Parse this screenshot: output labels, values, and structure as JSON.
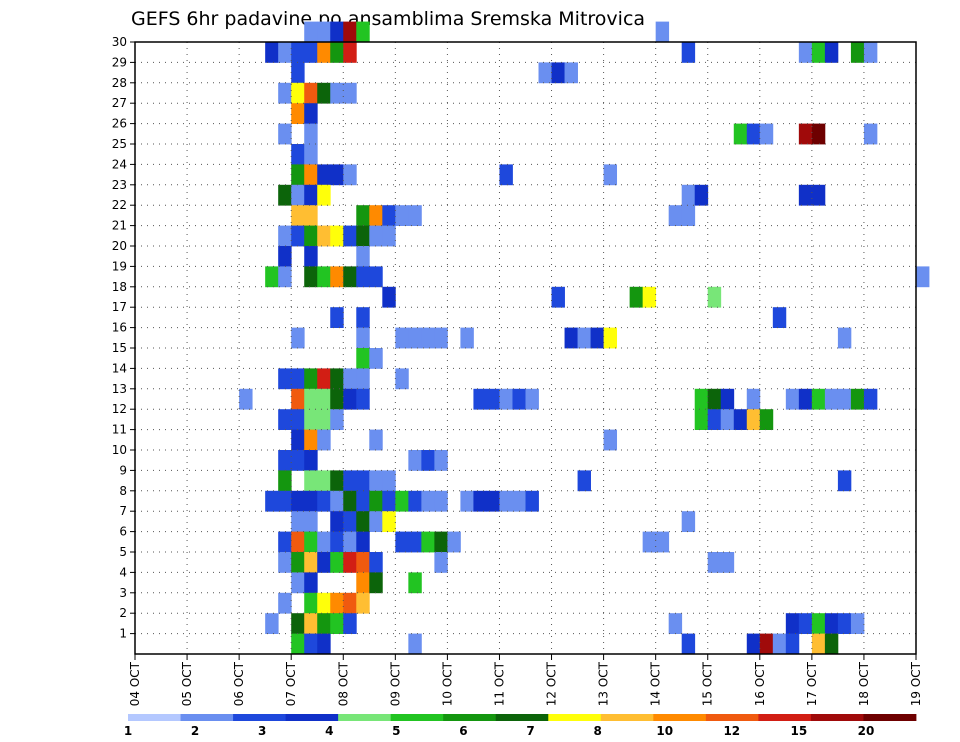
{
  "chart_data": {
    "type": "heatmap",
    "title": "GEFS 6hr padavine po ansamblima Sremska Mitrovica",
    "x_axis": {
      "start": "04 OCT",
      "end": "19 OCT",
      "step_hours": 6,
      "tick_labels": [
        "04 OCT",
        "05 OCT",
        "06 OCT",
        "07 OCT",
        "08 OCT",
        "09 OCT",
        "10 OCT",
        "11 OCT",
        "12 OCT",
        "13 OCT",
        "14 OCT",
        "15 OCT",
        "16 OCT",
        "17 OCT",
        "18 OCT",
        "19 OCT"
      ]
    },
    "y_axis": {
      "label": "",
      "ylim": [
        0,
        30
      ],
      "tick_labels": [
        "1",
        "2",
        "3",
        "4",
        "5",
        "6",
        "7",
        "8",
        "9",
        "10",
        "11",
        "12",
        "13",
        "14",
        "15",
        "16",
        "17",
        "18",
        "19",
        "20",
        "21",
        "22",
        "23",
        "24",
        "25",
        "26",
        "27",
        "28",
        "29",
        "30"
      ]
    },
    "grid": true,
    "legend": {
      "placement": "bottom",
      "colors": [
        "#b4c8ff",
        "#6a8ff0",
        "#1e48dc",
        "#1030c8",
        "#78e678",
        "#22c422",
        "#14960f",
        "#0c640a",
        "#ffff0a",
        "#ffbe32",
        "#ff8a00",
        "#f05a0f",
        "#d21e14",
        "#a00a0a",
        "#6e0000"
      ],
      "labels": [
        "1",
        "",
        "2",
        "",
        "3",
        "",
        "4",
        "",
        "5",
        "",
        "6",
        "",
        "7",
        "",
        "8",
        "",
        "10",
        "",
        "12",
        "",
        "15",
        "",
        "20",
        ""
      ],
      "tick_labels": [
        "1",
        "2",
        "3",
        "4",
        "5",
        "6",
        "7",
        "8",
        "10",
        "12",
        "15",
        "20"
      ]
    },
    "cells": [
      [
        "07 OCT 06Z",
        30,
        1
      ],
      [
        "07 OCT 12Z",
        30,
        1
      ],
      [
        "07 OCT 18Z",
        30,
        3
      ],
      [
        "08 OCT 00Z",
        30,
        13
      ],
      [
        "08 OCT 06Z",
        30,
        5
      ],
      [
        "14 OCT 00Z",
        30,
        1
      ],
      [
        "06 OCT 12Z",
        29,
        3
      ],
      [
        "06 OCT 18Z",
        29,
        1
      ],
      [
        "07 OCT 00Z",
        29,
        2
      ],
      [
        "07 OCT 06Z",
        29,
        2
      ],
      [
        "07 OCT 12Z",
        29,
        10
      ],
      [
        "07 OCT 18Z",
        29,
        6
      ],
      [
        "08 OCT 00Z",
        29,
        12
      ],
      [
        "14 OCT 12Z",
        29,
        2
      ],
      [
        "16 OCT 18Z",
        29,
        1
      ],
      [
        "17 OCT 00Z",
        29,
        5
      ],
      [
        "17 OCT 06Z",
        29,
        3
      ],
      [
        "17 OCT 18Z",
        29,
        6
      ],
      [
        "18 OCT 00Z",
        29,
        1
      ],
      [
        "07 OCT 00Z",
        28,
        2
      ],
      [
        "11 OCT 18Z",
        28,
        1
      ],
      [
        "12 OCT 00Z",
        28,
        3
      ],
      [
        "12 OCT 06Z",
        28,
        1
      ],
      [
        "06 OCT 18Z",
        27,
        1
      ],
      [
        "07 OCT 00Z",
        27,
        8
      ],
      [
        "07 OCT 06Z",
        27,
        11
      ],
      [
        "07 OCT 12Z",
        27,
        7
      ],
      [
        "07 OCT 18Z",
        27,
        1
      ],
      [
        "08 OCT 00Z",
        27,
        1
      ],
      [
        "07 OCT 00Z",
        26,
        10
      ],
      [
        "07 OCT 06Z",
        26,
        3
      ],
      [
        "06 OCT 18Z",
        25,
        1
      ],
      [
        "07 OCT 06Z",
        25,
        1
      ],
      [
        "15 OCT 12Z",
        25,
        5
      ],
      [
        "15 OCT 18Z",
        25,
        2
      ],
      [
        "16 OCT 00Z",
        25,
        1
      ],
      [
        "16 OCT 18Z",
        25,
        13
      ],
      [
        "17 OCT 00Z",
        25,
        14
      ],
      [
        "18 OCT 00Z",
        25,
        1
      ],
      [
        "07 OCT 00Z",
        24,
        2
      ],
      [
        "07 OCT 06Z",
        24,
        1
      ],
      [
        "07 OCT 00Z",
        23,
        6
      ],
      [
        "07 OCT 06Z",
        23,
        10
      ],
      [
        "07 OCT 12Z",
        23,
        3
      ],
      [
        "07 OCT 18Z",
        23,
        3
      ],
      [
        "08 OCT 00Z",
        23,
        1
      ],
      [
        "11 OCT 00Z",
        23,
        2
      ],
      [
        "13 OCT 00Z",
        23,
        1
      ],
      [
        "06 OCT 18Z",
        22,
        7
      ],
      [
        "07 OCT 00Z",
        22,
        1
      ],
      [
        "07 OCT 06Z",
        22,
        3
      ],
      [
        "07 OCT 12Z",
        22,
        8
      ],
      [
        "14 OCT 12Z",
        22,
        1
      ],
      [
        "14 OCT 18Z",
        22,
        3
      ],
      [
        "16 OCT 18Z",
        22,
        3
      ],
      [
        "17 OCT 00Z",
        22,
        3
      ],
      [
        "07 OCT 00Z",
        21,
        9
      ],
      [
        "07 OCT 06Z",
        21,
        9
      ],
      [
        "08 OCT 06Z",
        21,
        6
      ],
      [
        "08 OCT 12Z",
        21,
        10
      ],
      [
        "08 OCT 18Z",
        21,
        2
      ],
      [
        "09 OCT 00Z",
        21,
        1
      ],
      [
        "09 OCT 06Z",
        21,
        1
      ],
      [
        "14 OCT 06Z",
        21,
        1
      ],
      [
        "14 OCT 12Z",
        21,
        1
      ],
      [
        "06 OCT 18Z",
        20,
        1
      ],
      [
        "07 OCT 00Z",
        20,
        2
      ],
      [
        "07 OCT 06Z",
        20,
        6
      ],
      [
        "07 OCT 12Z",
        20,
        9
      ],
      [
        "07 OCT 18Z",
        20,
        8
      ],
      [
        "08 OCT 00Z",
        20,
        2
      ],
      [
        "08 OCT 06Z",
        20,
        7
      ],
      [
        "08 OCT 12Z",
        20,
        1
      ],
      [
        "08 OCT 18Z",
        20,
        1
      ],
      [
        "06 OCT 18Z",
        19,
        3
      ],
      [
        "07 OCT 06Z",
        19,
        3
      ],
      [
        "08 OCT 06Z",
        19,
        1
      ],
      [
        "06 OCT 12Z",
        18,
        5
      ],
      [
        "06 OCT 18Z",
        18,
        1
      ],
      [
        "07 OCT 06Z",
        18,
        7
      ],
      [
        "07 OCT 12Z",
        18,
        5
      ],
      [
        "07 OCT 18Z",
        18,
        10
      ],
      [
        "08 OCT 00Z",
        18,
        7
      ],
      [
        "08 OCT 06Z",
        18,
        2
      ],
      [
        "08 OCT 12Z",
        18,
        2
      ],
      [
        "19 OCT 00Z",
        18,
        1
      ],
      [
        "08 OCT 18Z",
        17,
        3
      ],
      [
        "12 OCT 00Z",
        17,
        2
      ],
      [
        "13 OCT 12Z",
        17,
        6
      ],
      [
        "13 OCT 18Z",
        17,
        8
      ],
      [
        "15 OCT 00Z",
        17,
        4
      ],
      [
        "07 OCT 18Z",
        16,
        2
      ],
      [
        "08 OCT 06Z",
        16,
        2
      ],
      [
        "16 OCT 06Z",
        16,
        2
      ],
      [
        "07 OCT 00Z",
        15,
        1
      ],
      [
        "08 OCT 06Z",
        15,
        1
      ],
      [
        "09 OCT 00Z",
        15,
        1
      ],
      [
        "09 OCT 06Z",
        15,
        1
      ],
      [
        "09 OCT 12Z",
        15,
        1
      ],
      [
        "09 OCT 18Z",
        15,
        1
      ],
      [
        "10 OCT 06Z",
        15,
        1
      ],
      [
        "12 OCT 06Z",
        15,
        3
      ],
      [
        "12 OCT 12Z",
        15,
        1
      ],
      [
        "12 OCT 18Z",
        15,
        3
      ],
      [
        "13 OCT 00Z",
        15,
        8
      ],
      [
        "17 OCT 12Z",
        15,
        1
      ],
      [
        "08 OCT 06Z",
        14,
        5
      ],
      [
        "08 OCT 12Z",
        14,
        1
      ],
      [
        "06 OCT 18Z",
        13,
        2
      ],
      [
        "07 OCT 00Z",
        13,
        2
      ],
      [
        "07 OCT 06Z",
        13,
        6
      ],
      [
        "07 OCT 12Z",
        13,
        12
      ],
      [
        "07 OCT 18Z",
        13,
        7
      ],
      [
        "08 OCT 00Z",
        13,
        1
      ],
      [
        "08 OCT 06Z",
        13,
        1
      ],
      [
        "09 OCT 00Z",
        13,
        1
      ],
      [
        "06 OCT 00Z",
        12,
        1
      ],
      [
        "07 OCT 00Z",
        12,
        11
      ],
      [
        "07 OCT 06Z",
        12,
        4
      ],
      [
        "07 OCT 12Z",
        12,
        4
      ],
      [
        "07 OCT 18Z",
        12,
        7
      ],
      [
        "08 OCT 00Z",
        12,
        3
      ],
      [
        "08 OCT 06Z",
        12,
        2
      ],
      [
        "10 OCT 12Z",
        12,
        2
      ],
      [
        "10 OCT 18Z",
        12,
        2
      ],
      [
        "11 OCT 00Z",
        12,
        1
      ],
      [
        "11 OCT 06Z",
        12,
        2
      ],
      [
        "11 OCT 12Z",
        12,
        1
      ],
      [
        "14 OCT 18Z",
        12,
        5
      ],
      [
        "15 OCT 00Z",
        12,
        7
      ],
      [
        "15 OCT 06Z",
        12,
        3
      ],
      [
        "15 OCT 18Z",
        12,
        1
      ],
      [
        "16 OCT 12Z",
        12,
        1
      ],
      [
        "16 OCT 18Z",
        12,
        3
      ],
      [
        "17 OCT 00Z",
        12,
        5
      ],
      [
        "17 OCT 06Z",
        12,
        1
      ],
      [
        "17 OCT 12Z",
        12,
        1
      ],
      [
        "17 OCT 18Z",
        12,
        6
      ],
      [
        "18 OCT 00Z",
        12,
        2
      ],
      [
        "06 OCT 18Z",
        11,
        2
      ],
      [
        "07 OCT 00Z",
        11,
        2
      ],
      [
        "07 OCT 06Z",
        11,
        4
      ],
      [
        "07 OCT 12Z",
        11,
        4
      ],
      [
        "07 OCT 18Z",
        11,
        1
      ],
      [
        "14 OCT 18Z",
        11,
        5
      ],
      [
        "15 OCT 00Z",
        11,
        2
      ],
      [
        "15 OCT 06Z",
        11,
        1
      ],
      [
        "15 OCT 12Z",
        11,
        3
      ],
      [
        "15 OCT 18Z",
        11,
        9
      ],
      [
        "16 OCT 00Z",
        11,
        6
      ],
      [
        "07 OCT 00Z",
        10,
        3
      ],
      [
        "07 OCT 06Z",
        10,
        10
      ],
      [
        "07 OCT 12Z",
        10,
        1
      ],
      [
        "08 OCT 12Z",
        10,
        1
      ],
      [
        "13 OCT 00Z",
        10,
        1
      ],
      [
        "06 OCT 18Z",
        9,
        2
      ],
      [
        "07 OCT 00Z",
        9,
        2
      ],
      [
        "07 OCT 06Z",
        9,
        3
      ],
      [
        "09 OCT 06Z",
        9,
        1
      ],
      [
        "09 OCT 12Z",
        9,
        2
      ],
      [
        "09 OCT 18Z",
        9,
        1
      ],
      [
        "06 OCT 18Z",
        8,
        6
      ],
      [
        "07 OCT 06Z",
        8,
        4
      ],
      [
        "07 OCT 12Z",
        8,
        4
      ],
      [
        "07 OCT 18Z",
        8,
        7
      ],
      [
        "08 OCT 00Z",
        8,
        2
      ],
      [
        "08 OCT 06Z",
        8,
        2
      ],
      [
        "08 OCT 12Z",
        8,
        1
      ],
      [
        "08 OCT 18Z",
        8,
        1
      ],
      [
        "12 OCT 12Z",
        8,
        2
      ],
      [
        "17 OCT 12Z",
        8,
        2
      ],
      [
        "06 OCT 12Z",
        7,
        2
      ],
      [
        "06 OCT 18Z",
        7,
        2
      ],
      [
        "07 OCT 00Z",
        7,
        3
      ],
      [
        "07 OCT 06Z",
        7,
        3
      ],
      [
        "07 OCT 12Z",
        7,
        2
      ],
      [
        "07 OCT 18Z",
        7,
        1
      ],
      [
        "08 OCT 00Z",
        7,
        7
      ],
      [
        "08 OCT 06Z",
        7,
        2
      ],
      [
        "08 OCT 12Z",
        7,
        6
      ],
      [
        "08 OCT 18Z",
        7,
        2
      ],
      [
        "09 OCT 00Z",
        7,
        5
      ],
      [
        "09 OCT 06Z",
        7,
        2
      ],
      [
        "09 OCT 12Z",
        7,
        1
      ],
      [
        "09 OCT 18Z",
        7,
        1
      ],
      [
        "10 OCT 06Z",
        7,
        1
      ],
      [
        "10 OCT 12Z",
        7,
        3
      ],
      [
        "10 OCT 18Z",
        7,
        3
      ],
      [
        "11 OCT 00Z",
        7,
        1
      ],
      [
        "11 OCT 06Z",
        7,
        1
      ],
      [
        "11 OCT 12Z",
        7,
        2
      ],
      [
        "07 OCT 00Z",
        6,
        1
      ],
      [
        "07 OCT 06Z",
        6,
        1
      ],
      [
        "07 OCT 18Z",
        6,
        3
      ],
      [
        "08 OCT 00Z",
        6,
        2
      ],
      [
        "08 OCT 06Z",
        6,
        7
      ],
      [
        "08 OCT 12Z",
        6,
        1
      ],
      [
        "08 OCT 18Z",
        6,
        8
      ],
      [
        "14 OCT 12Z",
        6,
        1
      ],
      [
        "06 OCT 18Z",
        5,
        2
      ],
      [
        "07 OCT 00Z",
        5,
        11
      ],
      [
        "07 OCT 06Z",
        5,
        5
      ],
      [
        "07 OCT 12Z",
        5,
        1
      ],
      [
        "07 OCT 18Z",
        5,
        2
      ],
      [
        "08 OCT 00Z",
        5,
        1
      ],
      [
        "08 OCT 06Z",
        5,
        3
      ],
      [
        "09 OCT 00Z",
        5,
        2
      ],
      [
        "09 OCT 06Z",
        5,
        2
      ],
      [
        "09 OCT 12Z",
        5,
        5
      ],
      [
        "09 OCT 18Z",
        5,
        7
      ],
      [
        "10 OCT 00Z",
        5,
        1
      ],
      [
        "13 OCT 18Z",
        5,
        1
      ],
      [
        "14 OCT 00Z",
        5,
        1
      ],
      [
        "06 OCT 18Z",
        4,
        1
      ],
      [
        "07 OCT 00Z",
        4,
        6
      ],
      [
        "07 OCT 06Z",
        4,
        9
      ],
      [
        "07 OCT 12Z",
        4,
        3
      ],
      [
        "07 OCT 18Z",
        4,
        5
      ],
      [
        "08 OCT 00Z",
        4,
        12
      ],
      [
        "08 OCT 06Z",
        4,
        11
      ],
      [
        "08 OCT 12Z",
        4,
        2
      ],
      [
        "09 OCT 18Z",
        4,
        1
      ],
      [
        "15 OCT 00Z",
        4,
        1
      ],
      [
        "15 OCT 06Z",
        4,
        1
      ],
      [
        "07 OCT 00Z",
        3,
        1
      ],
      [
        "07 OCT 06Z",
        3,
        3
      ],
      [
        "08 OCT 06Z",
        3,
        10
      ],
      [
        "08 OCT 12Z",
        3,
        7
      ],
      [
        "09 OCT 06Z",
        3,
        5
      ],
      [
        "06 OCT 18Z",
        2,
        1
      ],
      [
        "07 OCT 06Z",
        2,
        5
      ],
      [
        "07 OCT 12Z",
        2,
        8
      ],
      [
        "07 OCT 18Z",
        2,
        10
      ],
      [
        "08 OCT 00Z",
        2,
        11
      ],
      [
        "08 OCT 06Z",
        2,
        9
      ],
      [
        "06 OCT 12Z",
        1,
        1
      ],
      [
        "07 OCT 00Z",
        1,
        7
      ],
      [
        "07 OCT 06Z",
        1,
        9
      ],
      [
        "07 OCT 12Z",
        1,
        6
      ],
      [
        "07 OCT 18Z",
        1,
        5
      ],
      [
        "08 OCT 00Z",
        1,
        2
      ],
      [
        "14 OCT 06Z",
        1,
        1
      ],
      [
        "16 OCT 12Z",
        1,
        3
      ],
      [
        "16 OCT 18Z",
        1,
        2
      ],
      [
        "17 OCT 00Z",
        1,
        5
      ],
      [
        "17 OCT 06Z",
        1,
        3
      ],
      [
        "17 OCT 12Z",
        1,
        2
      ],
      [
        "17 OCT 18Z",
        1,
        1
      ],
      [
        "07 OCT 00Z",
        0,
        5
      ],
      [
        "07 OCT 06Z",
        0,
        2
      ],
      [
        "07 OCT 12Z",
        0,
        3
      ],
      [
        "09 OCT 06Z",
        0,
        1
      ],
      [
        "14 OCT 12Z",
        0,
        2
      ],
      [
        "15 OCT 18Z",
        0,
        3
      ],
      [
        "16 OCT 00Z",
        0,
        13
      ],
      [
        "16 OCT 06Z",
        0,
        1
      ],
      [
        "16 OCT 12Z",
        0,
        2
      ],
      [
        "17 OCT 00Z",
        0,
        9
      ],
      [
        "17 OCT 06Z",
        0,
        7
      ]
    ]
  }
}
